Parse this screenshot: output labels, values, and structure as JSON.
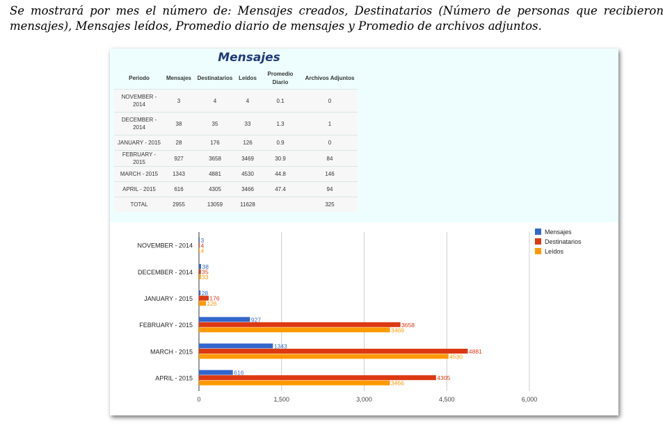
{
  "intro_text": "Se mostrará por mes el número de: Mensajes creados, Destinatarios (Número de personas que recibieron mensajes), Mensajes leídos, Promedio diario de mensajes y Promedio de archivos adjuntos.",
  "table": {
    "title": "Mensajes",
    "headers": [
      "Periodo",
      "Mensajes",
      "Destinatarios",
      "Leídos",
      "Promedio Diario",
      "Archivos Adjuntos"
    ],
    "rows": [
      [
        "NOVEMBER - 2014",
        "3",
        "4",
        "4",
        "0.1",
        "0"
      ],
      [
        "DECEMBER - 2014",
        "38",
        "35",
        "33",
        "1.3",
        "1"
      ],
      [
        "JANUARY - 2015",
        "28",
        "176",
        "126",
        "0.9",
        "0"
      ],
      [
        "FEBRUARY - 2015",
        "927",
        "3658",
        "3469",
        "30.9",
        "84"
      ],
      [
        "MARCH - 2015",
        "1343",
        "4881",
        "4530",
        "44.8",
        "146"
      ],
      [
        "APRIL - 2015",
        "616",
        "4305",
        "3466",
        "47.4",
        "94"
      ],
      [
        "TOTAL",
        "2955",
        "13059",
        "11628",
        "",
        "325"
      ]
    ]
  },
  "chart_data": {
    "type": "bar",
    "orientation": "horizontal",
    "categories": [
      "NOVEMBER - 2014",
      "DECEMBER - 2014",
      "JANUARY - 2015",
      "FEBRUARY - 2015",
      "MARCH - 2015",
      "APRIL - 2015"
    ],
    "series": [
      {
        "name": "Mensajes",
        "color": "#3366cc",
        "values": [
          3,
          38,
          28,
          927,
          1343,
          616
        ]
      },
      {
        "name": "Destinatarios",
        "color": "#dc3912",
        "values": [
          4,
          35,
          176,
          3658,
          4881,
          4305
        ]
      },
      {
        "name": "Leídos",
        "color": "#ff9900",
        "values": [
          4,
          33,
          126,
          3469,
          4530,
          3466
        ]
      }
    ],
    "xlim": [
      0,
      6000
    ],
    "ticks": [
      0,
      1500,
      3000,
      4500,
      6000
    ],
    "tick_labels": [
      "0",
      "1,500",
      "3,000",
      "4,500",
      "6,000"
    ],
    "legend_position": "right",
    "title": "",
    "xlabel": "",
    "ylabel": ""
  }
}
